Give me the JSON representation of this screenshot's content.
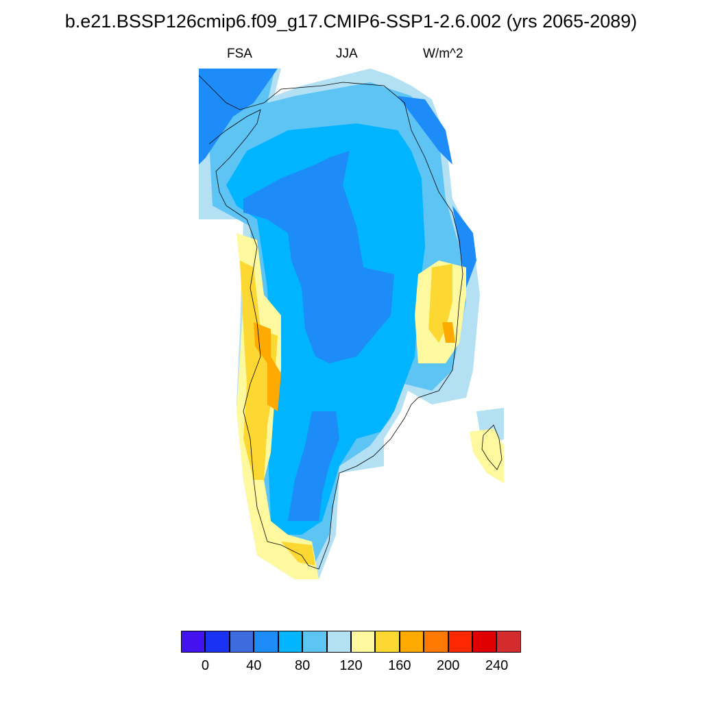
{
  "title": "b.e21.BSSP126cmip6.f09_g17.CMIP6-SSP1-2.6.002 (yrs 2065-2089)",
  "left_label": "FSA",
  "center_label": "JJA",
  "right_label": "W/m^2",
  "colorbar": {
    "colors": [
      "#4212f0",
      "#1a33f2",
      "#3c6cde",
      "#1e8cf8",
      "#00b4ff",
      "#5ec4f4",
      "#b4e0f4",
      "#fef89e",
      "#fed832",
      "#ffaa00",
      "#ff7800",
      "#ff2800",
      "#e00000",
      "#d42c2c"
    ],
    "tick_labels": [
      "0",
      "40",
      "80",
      "120",
      "160",
      "200",
      "240"
    ]
  },
  "map": {
    "variable": "FSA",
    "season": "JJA",
    "units": "W/m^2",
    "region": "Greenland",
    "dominant_interior_range": "40-80",
    "coastal_range": "120-200"
  }
}
